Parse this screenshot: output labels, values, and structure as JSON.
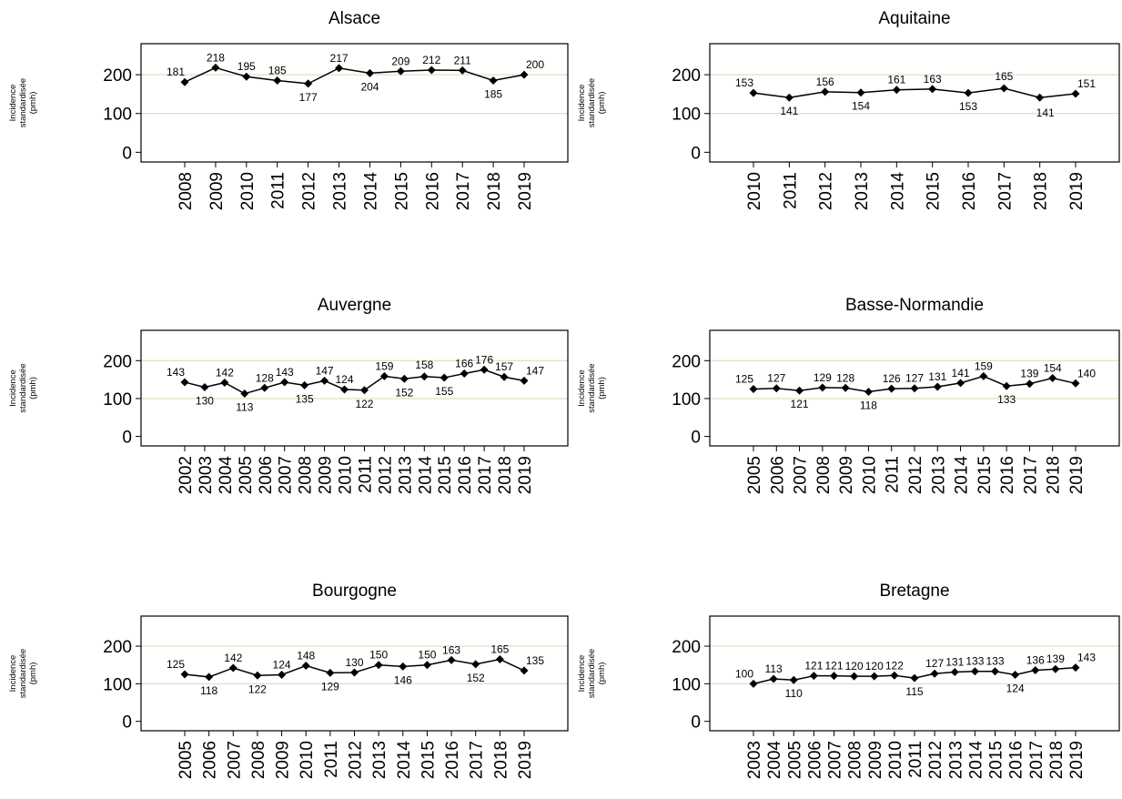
{
  "colors": {
    "line": "#000000",
    "grid": "#dfd3b4",
    "frame": "#000000",
    "text": "#000000"
  },
  "chart_data": [
    {
      "type": "line",
      "title": "Alsace",
      "ylabel": [
        "Incidence",
        "standardisée",
        "(pmh)"
      ],
      "ylim": [
        -25,
        280
      ],
      "yticks": [
        0,
        100,
        200
      ],
      "grid": "horizontal",
      "x": [
        "2008",
        "2009",
        "2010",
        "2011",
        "2012",
        "2013",
        "2014",
        "2015",
        "2016",
        "2017",
        "2018",
        "2019"
      ],
      "series": [
        {
          "values": [
            181,
            218,
            195,
            185,
            177,
            217,
            204,
            209,
            212,
            211,
            185,
            200
          ]
        }
      ]
    },
    {
      "type": "line",
      "title": "Aquitaine",
      "ylabel": [
        "Incidence",
        "standardisée",
        "(pmh)"
      ],
      "ylim": [
        -25,
        280
      ],
      "yticks": [
        0,
        100,
        200
      ],
      "grid": "horizontal",
      "x": [
        "2010",
        "2011",
        "2012",
        "2013",
        "2014",
        "2015",
        "2016",
        "2017",
        "2018",
        "2019"
      ],
      "series": [
        {
          "values": [
            153,
            141,
            156,
            154,
            161,
            163,
            153,
            165,
            141,
            151
          ]
        }
      ]
    },
    {
      "type": "line",
      "title": "Auvergne",
      "ylabel": [
        "Incidence",
        "standardisée",
        "(pmh)"
      ],
      "ylim": [
        -25,
        280
      ],
      "yticks": [
        0,
        100,
        200
      ],
      "grid": "horizontal",
      "x": [
        "2002",
        "2003",
        "2004",
        "2005",
        "2006",
        "2007",
        "2008",
        "2009",
        "2010",
        "2011",
        "2012",
        "2013",
        "2014",
        "2015",
        "2016",
        "2017",
        "2018",
        "2019"
      ],
      "series": [
        {
          "values": [
            143,
            130,
            142,
            113,
            128,
            143,
            135,
            147,
            124,
            122,
            159,
            152,
            158,
            155,
            166,
            176,
            157,
            147
          ]
        }
      ]
    },
    {
      "type": "line",
      "title": "Basse-Normandie",
      "ylabel": [
        "Incidence",
        "standardisée",
        "(pmh)"
      ],
      "ylim": [
        -25,
        280
      ],
      "yticks": [
        0,
        100,
        200
      ],
      "grid": "horizontal",
      "x": [
        "2005",
        "2006",
        "2007",
        "2008",
        "2009",
        "2010",
        "2011",
        "2012",
        "2013",
        "2014",
        "2015",
        "2016",
        "2017",
        "2018",
        "2019"
      ],
      "series": [
        {
          "values": [
            125,
            127,
            121,
            129,
            128,
            118,
            126,
            127,
            131,
            141,
            159,
            133,
            139,
            154,
            140
          ]
        }
      ]
    },
    {
      "type": "line",
      "title": "Bourgogne",
      "ylabel": [
        "Incidence",
        "standardisée",
        "(pmh)"
      ],
      "ylim": [
        -25,
        280
      ],
      "yticks": [
        0,
        100,
        200
      ],
      "grid": "horizontal",
      "x": [
        "2005",
        "2006",
        "2007",
        "2008",
        "2009",
        "2010",
        "2011",
        "2012",
        "2013",
        "2014",
        "2015",
        "2016",
        "2017",
        "2018",
        "2019"
      ],
      "series": [
        {
          "values": [
            125,
            118,
            142,
            122,
            124,
            148,
            129,
            130,
            150,
            146,
            150,
            163,
            152,
            165,
            135
          ]
        }
      ]
    },
    {
      "type": "line",
      "title": "Bretagne",
      "ylabel": [
        "Incidence",
        "standardisée",
        "(pmh)"
      ],
      "ylim": [
        -25,
        280
      ],
      "yticks": [
        0,
        100,
        200
      ],
      "grid": "horizontal",
      "x": [
        "2003",
        "2004",
        "2005",
        "2006",
        "2007",
        "2008",
        "2009",
        "2010",
        "2011",
        "2012",
        "2013",
        "2014",
        "2015",
        "2016",
        "2017",
        "2018",
        "2019"
      ],
      "series": [
        {
          "values": [
            100,
            113,
            110,
            121,
            121,
            120,
            120,
            122,
            115,
            127,
            131,
            133,
            133,
            124,
            136,
            139,
            143
          ]
        }
      ]
    }
  ]
}
